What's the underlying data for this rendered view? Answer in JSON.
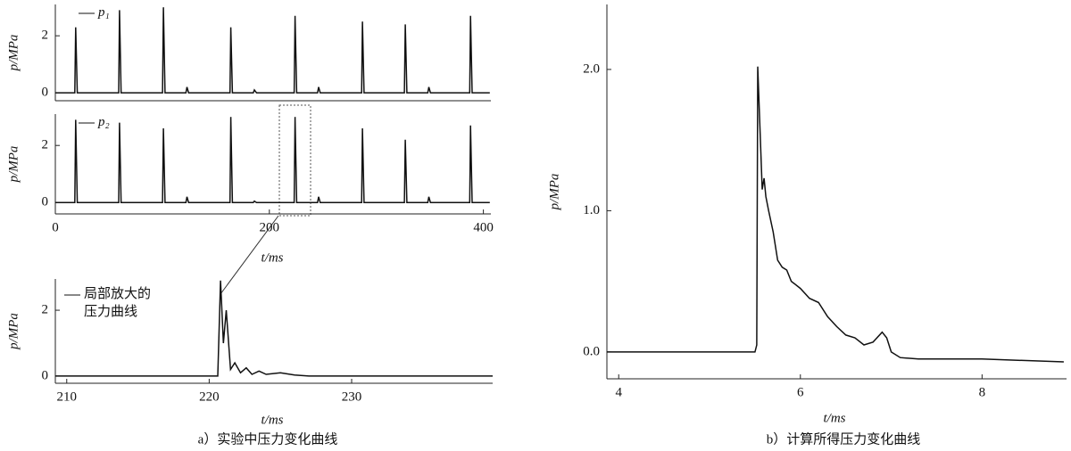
{
  "chart_data": [
    {
      "type": "line",
      "ylabel": "p/MPa",
      "xlim": [
        0,
        407
      ],
      "ylim": [
        -0.28,
        3.1
      ],
      "yticks": [
        0,
        2
      ],
      "legend": "upper left",
      "series": [
        {
          "name": "p₁",
          "color": "#111111",
          "x": [
            0,
            18.2,
            19,
            20.5,
            59.2,
            60,
            61.5,
            100.2,
            101,
            102.5,
            122,
            123,
            124.5,
            163.2,
            164,
            165.5,
            185,
            186,
            188,
            223.2,
            224,
            225.5,
            245,
            246,
            247.5,
            286.2,
            287,
            288.5,
            326.2,
            327,
            328.5,
            348,
            349,
            350.5,
            387.2,
            388,
            389.5,
            406
          ],
          "values": [
            0,
            0,
            2.3,
            0,
            0,
            2.9,
            0,
            0,
            3.0,
            0,
            0,
            0.2,
            0,
            0,
            2.3,
            0,
            0,
            0.1,
            0,
            0,
            2.7,
            0,
            0,
            0.2,
            0,
            0,
            2.5,
            0,
            0,
            2.4,
            0,
            0,
            0.2,
            0,
            0,
            2.7,
            0,
            0
          ]
        }
      ]
    },
    {
      "type": "line",
      "ylabel": "p/MPa",
      "xlabel": "t/ms",
      "xlim": [
        0,
        407
      ],
      "ylim": [
        -0.4,
        3.1
      ],
      "xticks": [
        0,
        200,
        400
      ],
      "yticks": [
        0,
        2
      ],
      "legend": "upper left",
      "series": [
        {
          "name": "p₂",
          "color": "#111111",
          "x": [
            0,
            18.2,
            19,
            20.5,
            59.2,
            60,
            61.5,
            100.2,
            101,
            102.5,
            122,
            123,
            124.5,
            163.2,
            164,
            165.5,
            185,
            186,
            188,
            223.2,
            224,
            225.5,
            245,
            246,
            247.5,
            286.2,
            287,
            288.5,
            326.2,
            327,
            328.5,
            348,
            349,
            350.5,
            387.2,
            388,
            389.5,
            406
          ],
          "values": [
            0,
            0,
            2.9,
            0,
            0,
            2.8,
            0,
            0,
            2.6,
            0,
            0,
            0.2,
            0,
            0,
            3.0,
            0,
            0,
            0.05,
            0,
            0,
            3.0,
            0,
            0,
            0.2,
            0,
            0,
            2.6,
            0,
            0,
            2.2,
            0,
            0,
            0.2,
            0,
            0,
            2.7,
            0,
            0
          ]
        }
      ]
    },
    {
      "type": "line",
      "ylabel": "p/MPa",
      "xlabel": "t/ms",
      "caption": "a）实验中压力变化曲线",
      "xlim": [
        209.2,
        239.9
      ],
      "ylim": [
        -0.22,
        2.95
      ],
      "xticks": [
        210,
        220,
        230
      ],
      "yticks": [
        0,
        2
      ],
      "legend": "upper left",
      "series": [
        {
          "name": "局部放大的压力曲线",
          "color": "#111111",
          "x": [
            209.2,
            220.6,
            220.8,
            221.0,
            221.2,
            221.5,
            221.8,
            222.2,
            222.6,
            223.0,
            223.5,
            224.0,
            225.0,
            226.0,
            227.0,
            239.9
          ],
          "values": [
            0,
            0,
            2.9,
            1.0,
            2.0,
            0.2,
            0.4,
            0.1,
            0.25,
            0.05,
            0.15,
            0.05,
            0.1,
            0.03,
            0,
            0
          ]
        }
      ]
    },
    {
      "type": "line",
      "ylabel": "p/MPa",
      "xlabel": "t/ms",
      "caption": "b）计算所得压力变化曲线",
      "xlim": [
        3.87,
        8.93
      ],
      "ylim": [
        -0.19,
        2.46
      ],
      "xticks": [
        4,
        6,
        8
      ],
      "yticks": [
        {
          "value": 0,
          "label": "0.0"
        },
        {
          "value": 1,
          "label": "1.0"
        },
        {
          "value": 2,
          "label": "2.0"
        }
      ],
      "series": [
        {
          "name": null,
          "color": "#111111",
          "x": [
            3.87,
            5.5,
            5.52,
            5.53,
            5.56,
            5.58,
            5.6,
            5.62,
            5.65,
            5.7,
            5.75,
            5.8,
            5.85,
            5.9,
            6.0,
            6.1,
            6.2,
            6.3,
            6.4,
            6.5,
            6.6,
            6.7,
            6.8,
            6.9,
            6.95,
            7.0,
            7.1,
            7.3,
            8.0,
            8.9
          ],
          "values": [
            0.0,
            0.0,
            0.05,
            2.02,
            1.5,
            1.15,
            1.23,
            1.1,
            1.0,
            0.85,
            0.65,
            0.6,
            0.58,
            0.5,
            0.45,
            0.38,
            0.35,
            0.25,
            0.18,
            0.12,
            0.1,
            0.05,
            0.07,
            0.14,
            0.1,
            0.0,
            -0.04,
            -0.05,
            -0.05,
            -0.07
          ]
        }
      ]
    }
  ]
}
